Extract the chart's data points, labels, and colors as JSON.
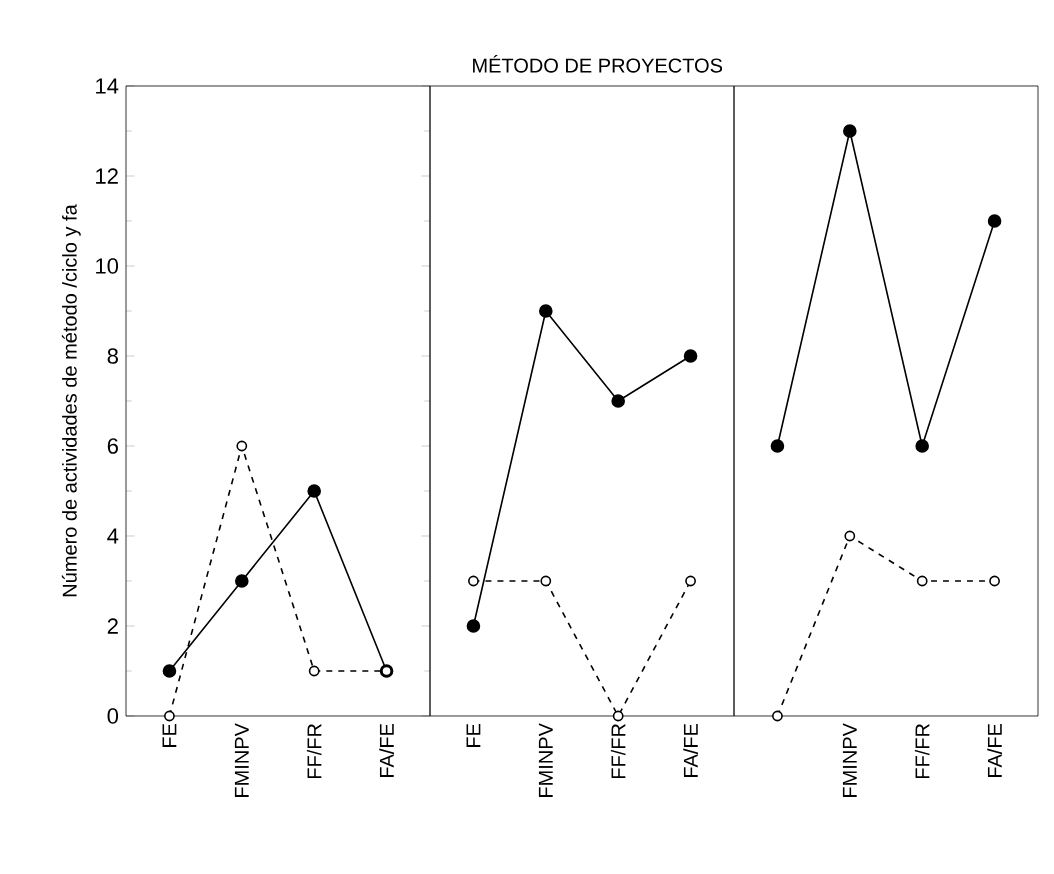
{
  "chart_data": [
    {
      "type": "line",
      "ylabel": "Número de actividades de método /ciclo y fa",
      "categories": [
        "FE",
        "FMINPV",
        "FF/FR",
        "FA/FE"
      ],
      "ylim": [
        0,
        14
      ],
      "yticks": [
        0,
        2,
        4,
        6,
        8,
        10,
        12,
        14
      ],
      "marker": "circle",
      "series": [
        {
          "color": "#000000",
          "line_style": "solid",
          "values": [
            1,
            3,
            5,
            1
          ]
        },
        {
          "color": "#000000",
          "line_style": "dashed",
          "values": [
            0,
            6,
            1,
            1
          ]
        }
      ]
    },
    {
      "type": "line",
      "title": "MÉTODO DE PROYECTOS",
      "categories": [
        "FE",
        "FMINPV",
        "FF/FR",
        "FA/FE"
      ],
      "ylim": [
        0,
        14
      ],
      "yticks": [
        0,
        2,
        4,
        6,
        8,
        10,
        12,
        14
      ],
      "tick_labels": "x",
      "marker": "circle",
      "series": [
        {
          "color": "#000000",
          "line_style": "solid",
          "values": [
            2,
            9,
            7,
            8
          ]
        },
        {
          "color": "#000000",
          "line_style": "dashed",
          "values": [
            3,
            3,
            0,
            3
          ]
        }
      ]
    },
    {
      "type": "line",
      "categories": [
        null,
        "FMINPV",
        "FF/FR",
        "FA/FE"
      ],
      "ylim": [
        0,
        14
      ],
      "yticks": [
        0,
        2,
        4,
        6,
        8,
        10,
        12,
        14
      ],
      "tick_labels": "x",
      "marker": "circle",
      "series": [
        {
          "color": "#000000",
          "line_style": "solid",
          "values": [
            6,
            13,
            6,
            11
          ]
        },
        {
          "color": "#000000",
          "line_style": "dashed",
          "values": [
            0,
            4,
            3,
            3
          ]
        }
      ]
    }
  ]
}
